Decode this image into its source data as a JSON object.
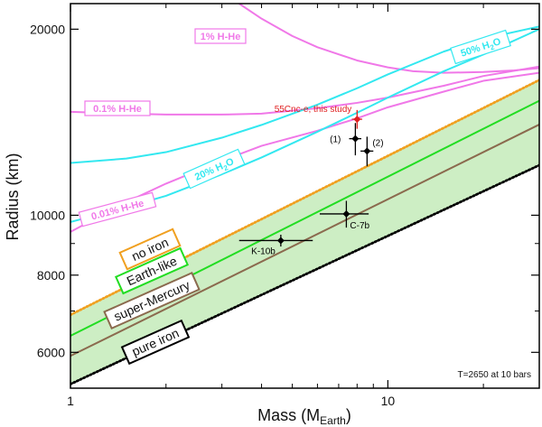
{
  "chart_data": {
    "type": "line",
    "xlabel": "Mass (M",
    "xlabel_sub": "Earth",
    "xlabel_close": ")",
    "ylabel": "Radius (km)",
    "x_scale": "log",
    "y_scale": "log",
    "xlim": [
      1,
      30
    ],
    "ylim": [
      5250,
      22000
    ],
    "x_ticks": [
      {
        "value": 1,
        "label": "1"
      },
      {
        "value": 10,
        "label": "10"
      }
    ],
    "y_ticks": [
      {
        "value": 6000,
        "label": "6000"
      },
      {
        "value": 8000,
        "label": "8000"
      },
      {
        "value": 10000,
        "label": "10000"
      },
      {
        "value": 20000,
        "label": "20000"
      }
    ],
    "annotation": "T=2650 at 10 bars",
    "band": {
      "name": "rocky region",
      "color": "#cdeec4",
      "upper": "no iron",
      "lower": "pure iron"
    },
    "series": [
      {
        "name": "no iron",
        "color": "#f0a020",
        "style": "dotted",
        "x": [
          1,
          30
        ],
        "y": [
          6900,
          16550
        ]
      },
      {
        "name": "Earth-like",
        "color": "#22dd22",
        "style": "solid",
        "x": [
          1,
          30
        ],
        "y": [
          6380,
          15320
        ]
      },
      {
        "name": "super-Mercury",
        "color": "#8b6a4e",
        "style": "solid",
        "x": [
          1,
          30
        ],
        "y": [
          5920,
          14020
        ]
      },
      {
        "name": "pure iron",
        "color": "#000000",
        "style": "dotted",
        "x": [
          1,
          30
        ],
        "y": [
          5330,
          12050
        ]
      },
      {
        "name": "20% H2O",
        "color": "#33e8f0",
        "style": "solid",
        "x": [
          1,
          1.5,
          2,
          3,
          4,
          6,
          8,
          10,
          15,
          20,
          30
        ],
        "y": [
          9750,
          10300,
          10750,
          11650,
          12400,
          13650,
          14650,
          15500,
          17100,
          18200,
          20000
        ]
      },
      {
        "name": "50% H2O",
        "color": "#33e8f0",
        "style": "solid",
        "x": [
          1,
          1.5,
          2,
          3,
          4,
          6,
          8,
          10,
          15,
          20,
          30
        ],
        "y": [
          12150,
          12350,
          12650,
          13350,
          14000,
          15100,
          16050,
          16900,
          18400,
          19300,
          20200
        ]
      },
      {
        "name": "0.01% H-He",
        "color": "#f078e8",
        "style": "solid",
        "x": [
          1,
          1.5,
          2,
          3,
          4,
          6,
          8,
          10,
          15,
          20,
          30
        ],
        "y": [
          9400,
          10500,
          11250,
          12250,
          12950,
          13700,
          14350,
          14950,
          15850,
          16500,
          17000
        ]
      },
      {
        "name": "0.1% H-He",
        "color": "#f078e8",
        "style": "solid",
        "x": [
          1,
          1.5,
          2,
          3,
          4,
          6,
          8,
          10,
          15,
          20,
          30
        ],
        "y": [
          14700,
          14600,
          14550,
          14550,
          14600,
          14900,
          15200,
          15500,
          16200,
          16800,
          17400
        ]
      },
      {
        "name": "1% H-He",
        "color": "#f078e8",
        "style": "solid",
        "x": [
          3.4,
          4,
          5,
          6,
          8,
          10,
          12,
          15,
          20,
          25,
          30
        ],
        "y": [
          22000,
          20800,
          19500,
          18700,
          17800,
          17350,
          17100,
          17000,
          17050,
          17150,
          17300
        ]
      }
    ],
    "labels": {
      "h2o_20_main": "20% H",
      "h2o_20_sub": "2",
      "h2o_20_end": "O",
      "h2o_50_main": "50% H",
      "h2o_50_sub": "2",
      "h2o_50_end": "O",
      "hhe_001": "0.01% H-He",
      "hhe_01": "0.1% H-He",
      "hhe_1": "1% H-He",
      "no_iron": "no iron",
      "earth_like": "Earth-like",
      "super_mercury": "super-Mercury",
      "pure_iron": "pure iron"
    },
    "points": [
      {
        "name": "55Cnc-e, this study",
        "label": "55Cnc-e, this study",
        "color": "#e02020",
        "mass": 8.0,
        "mass_err": 0.3,
        "radius": 14300,
        "radius_err": 500
      },
      {
        "name": "(1)",
        "label": "(1)",
        "color": "#000000",
        "mass": 7.9,
        "mass_err": 0.35,
        "radius": 13300,
        "radius_err": 800
      },
      {
        "name": "(2)",
        "label": "(2)",
        "color": "#000000",
        "mass": 8.6,
        "mass_err": 0.4,
        "radius": 12700,
        "radius_err": 700
      },
      {
        "name": "C-7b",
        "label": "C-7b",
        "color": "#000000",
        "mass": 7.4,
        "mass_err": 1.3,
        "radius": 10050,
        "radius_err": 500
      },
      {
        "name": "K-10b",
        "label": "K-10b",
        "color": "#000000",
        "mass": 4.6,
        "mass_err": 1.2,
        "radius": 9100,
        "radius_err": 200
      }
    ]
  }
}
